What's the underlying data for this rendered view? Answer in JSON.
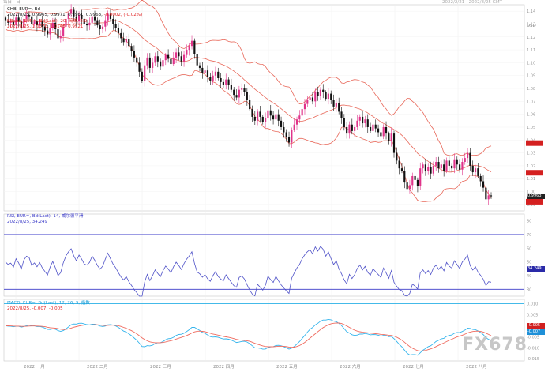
{
  "header": {
    "topbar_left": "每日 · 日",
    "topbar_right": "2022/2/21 - 2022/8/25 GMT"
  },
  "price_panel": {
    "line1": "CHB, EUR=, Bd",
    "line2_prefix": "2022/8/25, 0.9965, 0.9971, 0.9961, 0.9963,",
    "line2_change": "-0.0002, (-0.02%)",
    "line3": "BBand, EUR=, Bd(Last), 20, 简单, 2.0",
    "line4": "2022/8/25, 1.0376, 1.0146, 0.9921",
    "y_unit": "USD",
    "y_ticks": [
      "1.14",
      "1.13",
      "1.12",
      "1.11",
      "1.10",
      "1.09",
      "1.08",
      "1.07",
      "1.06",
      "1.05",
      "1.04",
      "1.03",
      "1.02",
      "1.01",
      "1.00",
      "0.99"
    ],
    "last_price_tag": "0.9963"
  },
  "rsi_panel": {
    "line1": "RSI, EUR=, Bd(Last), 14, 威尔德平滑",
    "line2": "2022/8/25, 34.249",
    "y_ticks": [
      "80",
      "70",
      "60",
      "50",
      "40",
      "30"
    ],
    "last_value_tag": "34.249"
  },
  "macd_panel": {
    "line1": "MACD, EUR=, Bd(Last), 12, 26, 9, 指数",
    "line2": "2022/8/25, -0.007, -0.005",
    "y_ticks": [
      "0.010",
      "0.005",
      "0.000",
      "-0.005",
      "-0.010",
      "-0.015"
    ],
    "tag_signal": "-0.005",
    "tag_macd": "-0.007"
  },
  "x_axis": {
    "labels": [
      "2022 一月",
      "2022 二月",
      "2022 三月",
      "2022 四月",
      "2022 五月",
      "2022 六月",
      "2022 七月",
      "2022 八月"
    ]
  },
  "watermark": "FX678",
  "colors": {
    "bull": "#e0338a",
    "bear": "#111111",
    "band": "#e8685a",
    "rsi": "#4f52c8",
    "macd": "#34b4ec",
    "signal": "#ef6b5f",
    "level_line": "#3a3ac8",
    "ref_line": "#2ab0e6"
  },
  "chart_data": [
    {
      "type": "candlestick",
      "series": "EUR=",
      "ylim": [
        0.985,
        1.145
      ],
      "bollinger": {
        "period": 20,
        "mult": 2.0,
        "last": {
          "upper": 1.0376,
          "middle": 1.0146,
          "lower": 0.9921
        }
      },
      "closes": [
        1.133,
        1.131,
        1.132,
        1.129,
        1.135,
        1.132,
        1.127,
        1.134,
        1.137,
        1.136,
        1.13,
        1.132,
        1.129,
        1.132,
        1.128,
        1.125,
        1.122,
        1.127,
        1.131,
        1.126,
        1.119,
        1.121,
        1.128,
        1.134,
        1.138,
        1.141,
        1.136,
        1.132,
        1.137,
        1.134,
        1.13,
        1.129,
        1.131,
        1.136,
        1.133,
        1.129,
        1.126,
        1.128,
        1.133,
        1.138,
        1.134,
        1.13,
        1.127,
        1.123,
        1.119,
        1.116,
        1.118,
        1.113,
        1.109,
        1.104,
        1.1,
        1.093,
        1.086,
        1.098,
        1.104,
        1.096,
        1.1,
        1.105,
        1.101,
        1.097,
        1.102,
        1.106,
        1.103,
        1.099,
        1.104,
        1.108,
        1.105,
        1.101,
        1.106,
        1.11,
        1.113,
        1.117,
        1.107,
        1.098,
        1.096,
        1.092,
        1.094,
        1.089,
        1.086,
        1.09,
        1.093,
        1.088,
        1.085,
        1.083,
        1.087,
        1.083,
        1.079,
        1.075,
        1.073,
        1.079,
        1.08,
        1.077,
        1.071,
        1.064,
        1.058,
        1.055,
        1.062,
        1.058,
        1.054,
        1.057,
        1.063,
        1.059,
        1.056,
        1.06,
        1.055,
        1.05,
        1.046,
        1.042,
        1.038,
        1.048,
        1.052,
        1.056,
        1.059,
        1.064,
        1.068,
        1.071,
        1.073,
        1.07,
        1.077,
        1.074,
        1.079,
        1.077,
        1.072,
        1.076,
        1.071,
        1.066,
        1.069,
        1.062,
        1.057,
        1.05,
        1.045,
        1.052,
        1.047,
        1.05,
        1.055,
        1.058,
        1.053,
        1.056,
        1.05,
        1.047,
        1.052,
        1.049,
        1.046,
        1.043,
        1.05,
        1.045,
        1.039,
        1.045,
        1.03,
        1.024,
        1.018,
        1.016,
        1.007,
        1.002,
        1.005,
        1.012,
        1.009,
        1.004,
        1.018,
        1.021,
        1.016,
        1.019,
        1.014,
        1.02,
        1.023,
        1.018,
        1.021,
        1.016,
        1.024,
        1.02,
        1.018,
        1.025,
        1.021,
        1.017,
        1.023,
        1.026,
        1.03,
        1.02,
        1.015,
        1.018,
        1.012,
        1.008,
        1.003,
        0.994,
        0.997,
        0.9963
      ]
    },
    {
      "type": "line",
      "series": "RSI(14)",
      "ylim": [
        25,
        85
      ],
      "levels": [
        70,
        30
      ],
      "last": 34.249
    },
    {
      "type": "line",
      "series": "MACD(12,26,9)",
      "ylim": [
        -0.016,
        0.012
      ],
      "reference_line": 0.01,
      "last": {
        "macd": -0.007,
        "signal": -0.005
      }
    }
  ]
}
